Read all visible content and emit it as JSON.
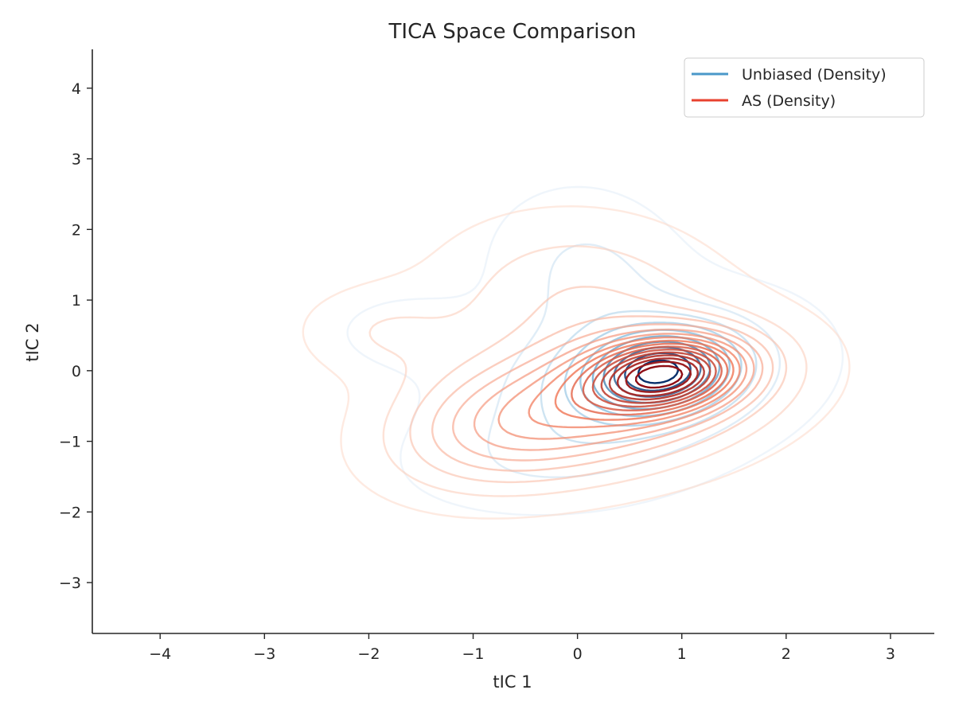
{
  "chart_data": {
    "type": "contour",
    "title": "TICA Space Comparison",
    "xlabel": "tIC 1",
    "ylabel": "tIC 2",
    "xlim": [
      -4.65,
      3.42
    ],
    "ylim": [
      -3.72,
      4.55
    ],
    "xticks": [
      -4,
      -3,
      -2,
      -1,
      0,
      1,
      2,
      3
    ],
    "yticks": [
      -3,
      -2,
      -1,
      0,
      1,
      2,
      3,
      4
    ],
    "xtick_labels": [
      "−4",
      "−3",
      "−2",
      "−1",
      "0",
      "1",
      "2",
      "3"
    ],
    "ytick_labels": [
      "−3",
      "−2",
      "−1",
      "0",
      "1",
      "2",
      "3",
      "4"
    ],
    "grid": false,
    "legend_position": "top-right",
    "series": [
      {
        "name": "Unbiased (Density)",
        "color": "#4a98c9",
        "colormap": "Blues",
        "levels": 10,
        "density_peak": [
          0.8,
          0.0
        ],
        "extent_x": [
          -2.75,
          2.35
        ],
        "extent_y": [
          -2.35,
          2.9
        ]
      },
      {
        "name": "AS (Density)",
        "color": "#e8412f",
        "colormap": "Reds",
        "levels": 17,
        "density_peak": [
          0.8,
          -0.05
        ],
        "extent_x": [
          -3.05,
          2.65
        ],
        "extent_y": [
          -2.6,
          3.0
        ]
      }
    ]
  }
}
